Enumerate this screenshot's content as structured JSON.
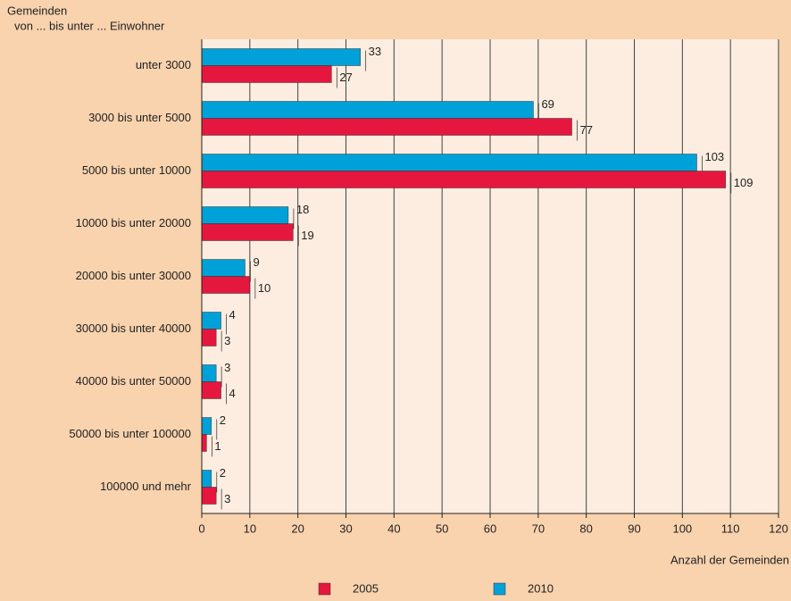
{
  "chart_data": {
    "type": "barh",
    "ylabel": [
      "Gemeinden",
      "von ... bis unter ... Einwohner"
    ],
    "xlabel": "Anzahl der Gemeinden",
    "categories": [
      "unter 3000",
      "3000 bis unter 5000",
      "5000 bis unter 10000",
      "10000 bis unter 20000",
      "20000 bis unter 30000",
      "30000 bis unter 40000",
      "40000 bis unter 50000",
      "50000 bis unter 100000",
      "100000 und mehr"
    ],
    "series": [
      {
        "name": "2005",
        "color": "#e5173f",
        "values": [
          27,
          77,
          109,
          19,
          10,
          3,
          4,
          1,
          3
        ]
      },
      {
        "name": "2010",
        "color": "#00a1d8",
        "values": [
          33,
          69,
          103,
          18,
          9,
          4,
          3,
          2,
          2
        ]
      }
    ],
    "xlim": [
      0,
      120
    ],
    "xticks": [
      0,
      10,
      20,
      30,
      40,
      50,
      60,
      70,
      80,
      90,
      100,
      110,
      120
    ],
    "grid": true,
    "legend": "bottom"
  }
}
